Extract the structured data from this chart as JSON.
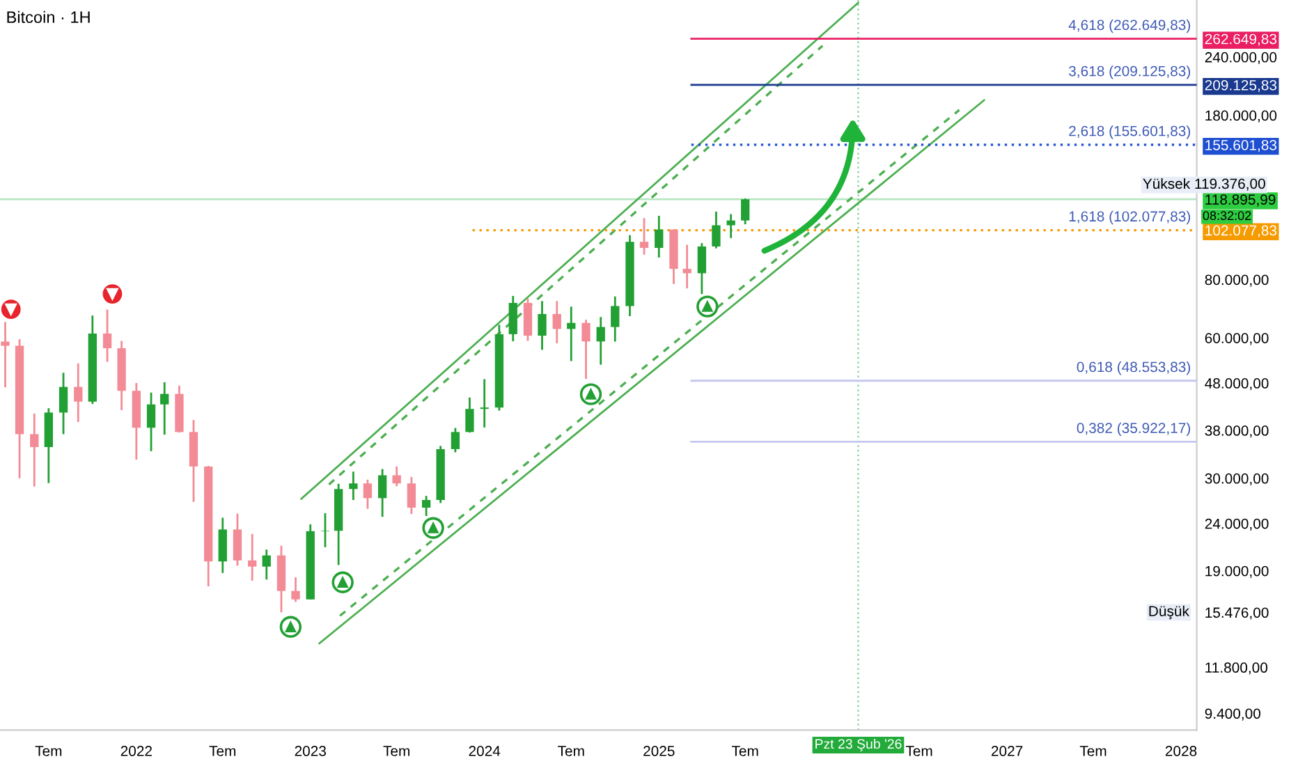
{
  "chart_data": {
    "type": "candlestick",
    "title": "Bitcoin · 1H",
    "x": [
      "2021-04",
      "2021-05",
      "2021-06",
      "2021-07",
      "2021-08",
      "2021-09",
      "2021-10",
      "2021-11",
      "2021-12",
      "2022-01",
      "2022-02",
      "2022-03",
      "2022-04",
      "2022-05",
      "2022-06",
      "2022-07",
      "2022-08",
      "2022-09",
      "2022-10",
      "2022-11",
      "2022-12",
      "2023-01",
      "2023-02",
      "2023-03",
      "2023-04",
      "2023-05",
      "2023-06",
      "2023-07",
      "2023-08",
      "2023-09",
      "2023-10",
      "2023-11",
      "2023-12",
      "2024-01",
      "2024-02",
      "2024-03",
      "2024-04",
      "2024-05",
      "2024-06",
      "2024-07",
      "2024-08",
      "2024-09",
      "2024-10",
      "2024-11",
      "2024-12",
      "2025-01",
      "2025-02",
      "2025-03",
      "2025-04",
      "2025-05",
      "2025-06",
      "2025-07"
    ],
    "ohlc": [
      [
        58900,
        64900,
        47000,
        57700
      ],
      [
        57700,
        59600,
        30000,
        37300
      ],
      [
        37300,
        41300,
        28800,
        35000
      ],
      [
        35000,
        42400,
        29300,
        41500
      ],
      [
        41500,
        50500,
        37300,
        47100
      ],
      [
        47100,
        52900,
        39600,
        43800
      ],
      [
        43800,
        67000,
        43300,
        61300
      ],
      [
        61300,
        69000,
        53300,
        57000
      ],
      [
        57000,
        59100,
        42000,
        46200
      ],
      [
        46200,
        48000,
        32900,
        38500
      ],
      [
        38500,
        45800,
        34300,
        43200
      ],
      [
        43200,
        48200,
        37200,
        45500
      ],
      [
        45500,
        47400,
        37600,
        37700
      ],
      [
        37700,
        40000,
        26700,
        31800
      ],
      [
        31800,
        31900,
        17600,
        19900
      ],
      [
        19900,
        24700,
        18800,
        23300
      ],
      [
        23300,
        25200,
        19500,
        20000
      ],
      [
        20000,
        22800,
        18100,
        19400
      ],
      [
        19400,
        21100,
        18200,
        20500
      ],
      [
        20500,
        21500,
        15476,
        17200
      ],
      [
        17200,
        18400,
        16300,
        16500
      ],
      [
        16500,
        23900,
        16500,
        23100
      ],
      [
        23100,
        25250,
        21350,
        23150
      ],
      [
        23150,
        29200,
        19550,
        28450
      ],
      [
        28450,
        31000,
        26950,
        29250
      ],
      [
        29250,
        29800,
        25800,
        27200
      ],
      [
        27200,
        31400,
        24800,
        30450
      ],
      [
        30450,
        31800,
        28850,
        29250
      ],
      [
        29250,
        30200,
        25150,
        25950
      ],
      [
        25950,
        27500,
        24900,
        26950
      ],
      [
        26950,
        35200,
        26550,
        34650
      ],
      [
        34650,
        38450,
        34100,
        37700
      ],
      [
        37700,
        44700,
        37600,
        42250
      ],
      [
        42250,
        48950,
        38550,
        42550
      ],
      [
        42550,
        64000,
        41900,
        61100
      ],
      [
        61100,
        73800,
        59000,
        71300
      ],
      [
        71300,
        72800,
        59100,
        60650
      ],
      [
        60650,
        71950,
        56550,
        67500
      ],
      [
        67500,
        71950,
        58400,
        62700
      ],
      [
        62700,
        70000,
        53500,
        64600
      ],
      [
        64600,
        65600,
        49000,
        58950
      ],
      [
        58950,
        66500,
        52550,
        63300
      ],
      [
        63300,
        73600,
        58900,
        70200
      ],
      [
        70200,
        99600,
        66800,
        96400
      ],
      [
        96400,
        108350,
        90500,
        93550
      ],
      [
        93550,
        109600,
        89200,
        102400
      ],
      [
        102400,
        102500,
        78250,
        84350
      ],
      [
        84350,
        95000,
        76600,
        82550
      ],
      [
        82550,
        95750,
        74500,
        94200
      ],
      [
        94200,
        111900,
        93350,
        104600
      ],
      [
        104600,
        110500,
        98200,
        107100
      ],
      [
        107100,
        119376,
        105100,
        118895.99
      ]
    ],
    "colors": [
      "#f28b95",
      "#f28b95",
      "#f28b95",
      "#22a033",
      "#22a033",
      "#f28b95",
      "#22a033",
      "#f28b95",
      "#f28b95",
      "#f28b95",
      "#22a033",
      "#22a033",
      "#f28b95",
      "#f28b95",
      "#f28b95",
      "#22a033",
      "#f28b95",
      "#f28b95",
      "#22a033",
      "#f28b95",
      "#f28b95",
      "#22a033",
      "#22a033",
      "#22a033",
      "#22a033",
      "#f28b95",
      "#22a033",
      "#f28b95",
      "#f28b95",
      "#22a033",
      "#22a033",
      "#22a033",
      "#22a033",
      "#22a033",
      "#22a033",
      "#22a033",
      "#f28b95",
      "#22a033",
      "#f28b95",
      "#22a033",
      "#f28b95",
      "#22a033",
      "#22a033",
      "#22a033",
      "#f28b95",
      "#22a033",
      "#f28b95",
      "#f28b95",
      "#22a033",
      "#22a033",
      "#22a033",
      "#22a033"
    ],
    "series": [
      {
        "type": "line",
        "color": "#4caf50",
        "line_style": "solid",
        "x": [
          "2022-12-13",
          "2026-02-23"
        ],
        "values": [
          27100,
          313800
        ]
      },
      {
        "type": "line",
        "color": "#4caf50",
        "line_style": "dashed",
        "x": [
          "2023-02-09",
          "2025-12-10"
        ],
        "values": [
          29100,
          253600
        ]
      },
      {
        "type": "line",
        "color": "#4caf50",
        "line_style": "solid",
        "x": [
          "2023-01-20",
          "2026-11-14"
        ],
        "values": [
          13280,
          193900
        ]
      },
      {
        "type": "line",
        "color": "#4caf50",
        "line_style": "dashed",
        "x": [
          "2023-03-04",
          "2026-09-23"
        ],
        "values": [
          15220,
          184800
        ]
      },
      {
        "type": "line",
        "color": "#e91e63",
        "line_style": "solid",
        "x": [
          "2025-03-10",
          "2028-02-03"
        ],
        "values": [
          262649.83,
          262649.83
        ]
      },
      {
        "type": "line",
        "color": "#1a3a8f",
        "line_style": "solid",
        "x": [
          "2025-03-10",
          "2028-02-03"
        ],
        "values": [
          209125.83,
          209125.83
        ]
      },
      {
        "type": "line",
        "color": "#1e4fd1",
        "line_style": "dotted",
        "x": [
          "2025-03-10",
          "2028-02-03"
        ],
        "values": [
          155601.83,
          155601.83
        ]
      },
      {
        "type": "line",
        "color": "#f59b00",
        "line_style": "dotted",
        "x": [
          "2023-12-07",
          "2028-02-03"
        ],
        "values": [
          102077.83,
          102077.83
        ]
      },
      {
        "type": "line",
        "color": "#c5c8ee",
        "line_style": "solid",
        "x": [
          "2025-03-10",
          "2028-02-03"
        ],
        "values": [
          48553.83,
          48553.83
        ]
      },
      {
        "type": "line",
        "color": "#c5c8ee",
        "line_style": "solid",
        "x": [
          "2025-03-10",
          "2028-02-03"
        ],
        "values": [
          35922.17,
          35922.17
        ]
      }
    ],
    "ref_lines": [
      {
        "axis": "y",
        "value": 118895.99,
        "color": "#b8e6c0",
        "line_style": "solid"
      },
      {
        "axis": "x",
        "value": "2026-02-23",
        "label": "Pzt 23 Şub '26",
        "color": "#22ab3a",
        "line_style": "dotted"
      }
    ],
    "annotations": [
      {
        "text": "4,618 (262.649,83)",
        "x": "2028-02-03",
        "y": 262649.83
      },
      {
        "text": "3,618 (209.125,83)",
        "x": "2028-02-03",
        "y": 209125.83
      },
      {
        "text": "2,618 (155.601,83)",
        "x": "2028-02-03",
        "y": 155601.83
      },
      {
        "text": "1,618 (102.077,83)",
        "x": "2028-02-03",
        "y": 102077.83
      },
      {
        "text": "0,618 (48.553,83)",
        "x": "2028-02-03",
        "y": 48553.83
      },
      {
        "text": "0,382 (35.922,17)",
        "x": "2028-02-03",
        "y": 35922.17
      },
      "Yüksek 119.376,00",
      "Düşük",
      "08:32:02"
    ],
    "log": true,
    "xlim": [
      "2021-03-21",
      "2028-02-03"
    ],
    "ylim": [
      8660,
      318000
    ],
    "xticks": [
      {
        "value": "2021-07-01",
        "label": "Tem"
      },
      {
        "value": "2022-01-01",
        "label": "2022"
      },
      {
        "value": "2022-07-01",
        "label": "Tem"
      },
      {
        "value": "2023-01-01",
        "label": "2023"
      },
      {
        "value": "2023-07-01",
        "label": "Tem"
      },
      {
        "value": "2024-01-01",
        "label": "2024"
      },
      {
        "value": "2024-07-01",
        "label": "Tem"
      },
      {
        "value": "2025-01-01",
        "label": "2025"
      },
      {
        "value": "2025-07-01",
        "label": "Tem"
      },
      {
        "value": "2026-07-01",
        "label": "Tem"
      },
      {
        "value": "2027-01-01",
        "label": "2027"
      },
      {
        "value": "2027-07-01",
        "label": "Tem"
      },
      {
        "value": "2028-01-01",
        "label": "2028"
      }
    ],
    "yticks": [
      {
        "value": 262649.83,
        "label": "262.649,83"
      },
      {
        "value": 240000,
        "label": "240.000,00"
      },
      {
        "value": 209125.83,
        "label": "209.125,83"
      },
      {
        "value": 180000,
        "label": "180.000,00"
      },
      {
        "value": 155601.83,
        "label": "155.601,83"
      },
      {
        "value": 118895.99,
        "label": "118.895,99"
      },
      {
        "value": 102077.83,
        "label": "102.077,83"
      },
      {
        "value": 80000,
        "label": "80.000,00"
      },
      {
        "value": 60000,
        "label": "60.000,00"
      },
      {
        "value": 48000,
        "label": "48.000,00"
      },
      {
        "value": 38000,
        "label": "38.000,00"
      },
      {
        "value": 30000,
        "label": "30.000,00"
      },
      {
        "value": 24000,
        "label": "24.000,00"
      },
      {
        "value": 19000,
        "label": "19.000,00"
      },
      {
        "value": 15476,
        "label": "15.476,00"
      },
      {
        "value": 11800,
        "label": "11.800,00"
      },
      {
        "value": 9400,
        "label": "9.400,00"
      }
    ],
    "grid": false,
    "legend": false
  }
}
